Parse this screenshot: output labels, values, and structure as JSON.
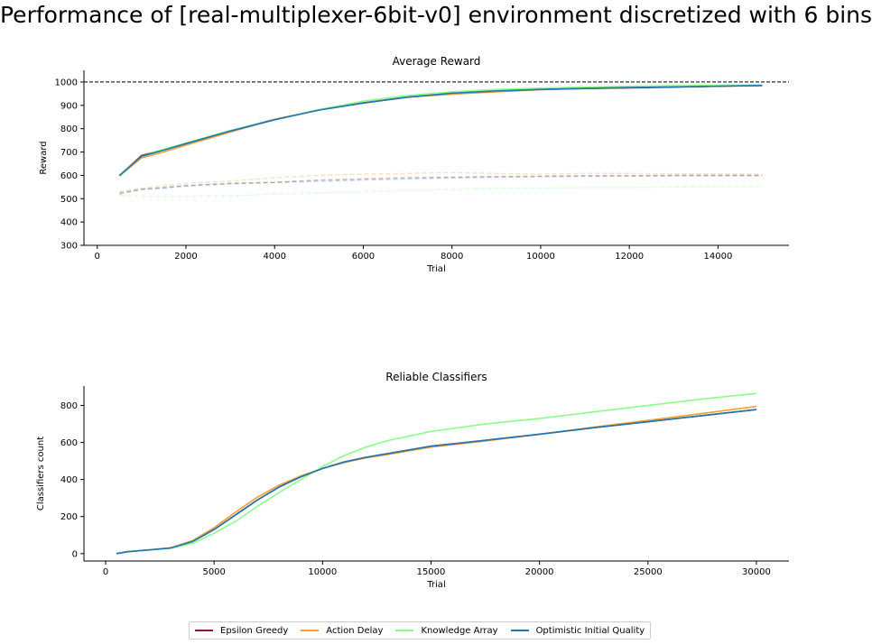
{
  "figure_title": "Performance of [real-multiplexer-6bit-v0] environment discretized with 6 bins",
  "legend": [
    {
      "label": "Epsilon Greedy",
      "color": "#8b1a2b"
    },
    {
      "label": "Action Delay",
      "color": "#f0a030"
    },
    {
      "label": "Knowledge Array",
      "color": "#88ff88"
    },
    {
      "label": "Optimistic Initial Quality",
      "color": "#1f77b4"
    }
  ],
  "chart_data": [
    {
      "type": "line",
      "title": "Average Reward",
      "xlabel": "Trial",
      "ylabel": "Reward",
      "xlim": [
        -300,
        15600
      ],
      "ylim": [
        300,
        1050
      ],
      "xticks": [
        0,
        2000,
        4000,
        6000,
        8000,
        10000,
        12000,
        14000
      ],
      "yticks": [
        300,
        400,
        500,
        600,
        700,
        800,
        900,
        1000
      ],
      "reference_line": {
        "y": 1000,
        "style": "dashed",
        "color": "#000000"
      },
      "x": [
        500,
        1000,
        1500,
        2000,
        3000,
        4000,
        5000,
        6000,
        7000,
        8000,
        9000,
        10000,
        11000,
        12000,
        13000,
        14000,
        15000
      ],
      "series": [
        {
          "name": "Epsilon Greedy",
          "color": "#8b1a2b",
          "style": "solid",
          "values": [
            600,
            685,
            710,
            735,
            790,
            840,
            880,
            910,
            935,
            950,
            960,
            968,
            972,
            975,
            978,
            982,
            985
          ]
        },
        {
          "name": "Action Delay",
          "color": "#f0a030",
          "style": "solid",
          "values": [
            598,
            675,
            700,
            730,
            785,
            840,
            880,
            912,
            935,
            948,
            958,
            967,
            972,
            976,
            980,
            983,
            986
          ]
        },
        {
          "name": "Knowledge Array",
          "color": "#88ff88",
          "style": "solid",
          "values": [
            602,
            682,
            712,
            738,
            792,
            838,
            882,
            918,
            942,
            958,
            968,
            974,
            978,
            981,
            984,
            986,
            988
          ]
        },
        {
          "name": "Optimistic Initial Quality",
          "color": "#1f77b4",
          "style": "solid",
          "values": [
            598,
            682,
            708,
            736,
            790,
            838,
            880,
            910,
            935,
            952,
            962,
            968,
            973,
            976,
            979,
            982,
            985
          ]
        },
        {
          "name": "Epsilon Greedy",
          "color": "#8b1a2b",
          "style": "dashed",
          "values": [
            520,
            540,
            548,
            555,
            565,
            570,
            580,
            585,
            590,
            592,
            595,
            596,
            598,
            598,
            600,
            600,
            600
          ]
        },
        {
          "name": "Action Delay",
          "color": "#f0a030",
          "style": "dashed",
          "values": [
            530,
            545,
            555,
            565,
            575,
            590,
            600,
            605,
            608,
            612,
            608,
            605,
            608,
            608,
            607,
            606,
            605
          ]
        },
        {
          "name": "Knowledge Array",
          "color": "#88ff88",
          "style": "dashed",
          "values": [
            515,
            510,
            510,
            510,
            512,
            520,
            525,
            530,
            535,
            540,
            545,
            545,
            548,
            548,
            550,
            552,
            552
          ]
        },
        {
          "name": "Optimistic Initial Quality",
          "color": "#1f77b4",
          "style": "dashed",
          "values": [
            525,
            540,
            545,
            555,
            565,
            570,
            575,
            580,
            585,
            590,
            592,
            595,
            596,
            597,
            598,
            598,
            598
          ]
        }
      ]
    },
    {
      "type": "line",
      "title": "Reliable Classifiers",
      "xlabel": "Trial",
      "ylabel": "Classifiers count",
      "xlim": [
        -1000,
        31500
      ],
      "ylim": [
        -40,
        905
      ],
      "xticks": [
        0,
        5000,
        10000,
        15000,
        20000,
        25000,
        30000
      ],
      "yticks": [
        0,
        200,
        400,
        600,
        800
      ],
      "x": [
        500,
        1000,
        2000,
        3000,
        4000,
        5000,
        6000,
        7000,
        8000,
        9000,
        10000,
        11000,
        12000,
        13000,
        15000,
        17500,
        20000,
        22500,
        25000,
        27500,
        30000
      ],
      "series": [
        {
          "name": "Epsilon Greedy",
          "color": "#8b1a2b",
          "style": "solid",
          "values": [
            0,
            10,
            20,
            30,
            65,
            130,
            210,
            290,
            360,
            415,
            460,
            495,
            520,
            540,
            580,
            612,
            645,
            680,
            712,
            745,
            778
          ]
        },
        {
          "name": "Action Delay",
          "color": "#f0a030",
          "style": "solid",
          "values": [
            0,
            10,
            20,
            32,
            70,
            140,
            225,
            305,
            370,
            420,
            460,
            492,
            517,
            535,
            575,
            608,
            645,
            683,
            720,
            757,
            795
          ]
        },
        {
          "name": "Knowledge Array",
          "color": "#88ff88",
          "style": "solid",
          "values": [
            0,
            10,
            20,
            28,
            55,
            110,
            175,
            255,
            330,
            400,
            470,
            530,
            575,
            610,
            660,
            700,
            730,
            765,
            800,
            835,
            865
          ]
        },
        {
          "name": "Optimistic Initial Quality",
          "color": "#1f77b4",
          "style": "solid",
          "values": [
            0,
            10,
            20,
            30,
            65,
            130,
            210,
            290,
            360,
            415,
            460,
            495,
            520,
            540,
            580,
            612,
            645,
            680,
            712,
            745,
            778
          ]
        }
      ]
    }
  ]
}
